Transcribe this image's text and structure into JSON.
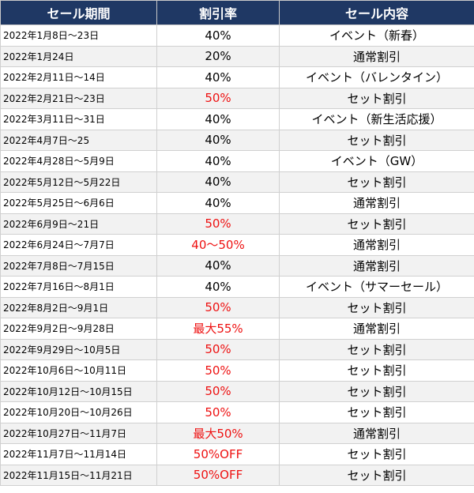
{
  "table": {
    "headers": [
      "セール期間",
      "割引率",
      "セール内容"
    ],
    "highlight_color": "#ee1111",
    "header_color": "#1f3864",
    "rows": [
      {
        "period": "2022年1月8日〜23日",
        "rate": "40%",
        "highlight": false,
        "content": "イベント（新春）"
      },
      {
        "period": "2022年1月24日",
        "rate": "20%",
        "highlight": false,
        "content": "通常割引"
      },
      {
        "period": "2022年2月11日〜14日",
        "rate": "40%",
        "highlight": false,
        "content": "イベント（バレンタイン）"
      },
      {
        "period": "2022年2月21日〜23日",
        "rate": "50%",
        "highlight": true,
        "content": "セット割引"
      },
      {
        "period": "2022年3月11日〜31日",
        "rate": "40%",
        "highlight": false,
        "content": "イベント（新生活応援）"
      },
      {
        "period": "2022年4月7日〜25",
        "rate": "40%",
        "highlight": false,
        "content": "セット割引"
      },
      {
        "period": "2022年4月28日〜5月9日",
        "rate": "40%",
        "highlight": false,
        "content": "イベント（GW）"
      },
      {
        "period": "2022年5月12日〜5月22日",
        "rate": "40%",
        "highlight": false,
        "content": "セット割引"
      },
      {
        "period": "2022年5月25日〜6月6日",
        "rate": "40%",
        "highlight": false,
        "content": "通常割引"
      },
      {
        "period": "2022年6月9日〜21日",
        "rate": "50%",
        "highlight": true,
        "content": "セット割引"
      },
      {
        "period": "2022年6月24日〜7月7日",
        "rate": "40〜50%",
        "highlight": true,
        "content": "通常割引"
      },
      {
        "period": "2022年7月8日〜7月15日",
        "rate": "40%",
        "highlight": false,
        "content": "通常割引"
      },
      {
        "period": "2022年7月16日〜8月1日",
        "rate": "40%",
        "highlight": false,
        "content": "イベント（サマーセール）"
      },
      {
        "period": "2022年8月2日〜9月1日",
        "rate": "50%",
        "highlight": true,
        "content": "セット割引"
      },
      {
        "period": "2022年9月2日〜9月28日",
        "rate": "最大55%",
        "highlight": true,
        "content": "通常割引"
      },
      {
        "period": "2022年9月29日〜10月5日",
        "rate": "50%",
        "highlight": true,
        "content": "セット割引"
      },
      {
        "period": "2022年10月6日〜10月11日",
        "rate": "50%",
        "highlight": true,
        "content": "セット割引"
      },
      {
        "period": "2022年10月12日〜10月15日",
        "rate": "50%",
        "highlight": true,
        "content": "セット割引"
      },
      {
        "period": "2022年10月20日〜10月26日",
        "rate": "50%",
        "highlight": true,
        "content": "セット割引"
      },
      {
        "period": "2022年10月27日〜11月7日",
        "rate": "最大50%",
        "highlight": true,
        "content": "通常割引"
      },
      {
        "period": "2022年11月7日〜11月14日",
        "rate": "50%OFF",
        "highlight": true,
        "content": "セット割引"
      },
      {
        "period": "2022年11月15日〜11月21日",
        "rate": "50%OFF",
        "highlight": true,
        "content": "セット割引"
      }
    ]
  }
}
